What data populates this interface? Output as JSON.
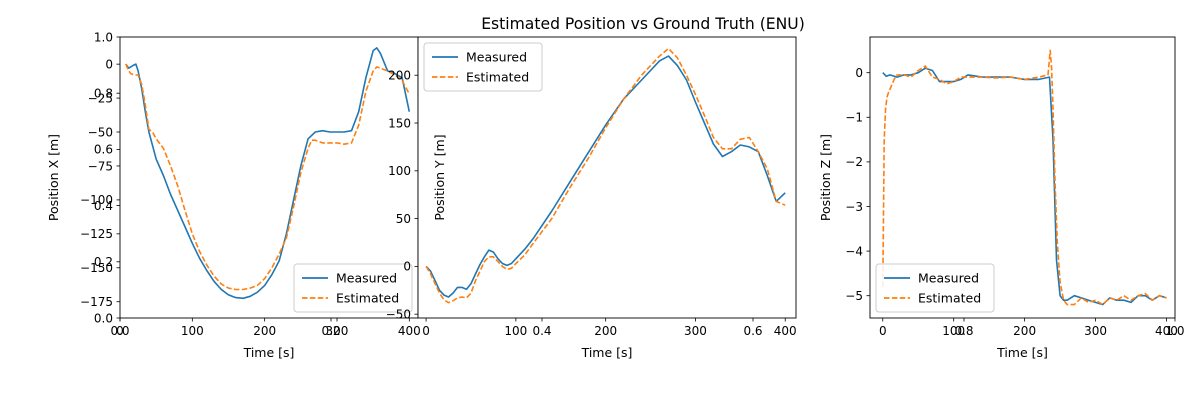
{
  "suptitle": "Estimated Position vs Ground Truth (ENU)",
  "colors": {
    "measured": "#1f77b4",
    "estimated": "#ff7f0e"
  },
  "bg_axis_ticks": [
    "0.0",
    "0.2",
    "0.4",
    "0.6",
    "0.8",
    "1.0"
  ],
  "chart_data": [
    {
      "type": "line",
      "xlabel": "Time [s]",
      "ylabel": "Position X [m]",
      "xlim": [
        0,
        412
      ],
      "ylim": [
        -187,
        20
      ],
      "xticks": [
        0,
        100,
        200,
        300,
        400
      ],
      "yticks": [
        0,
        -25,
        -50,
        -75,
        -100,
        -125,
        -150,
        -175
      ],
      "legend_loc": "lower right",
      "series": [
        {
          "name": "Measured",
          "style": "solid",
          "x": [
            8,
            12,
            18,
            22,
            25,
            30,
            35,
            40,
            50,
            60,
            70,
            80,
            90,
            100,
            110,
            120,
            130,
            140,
            150,
            160,
            170,
            180,
            190,
            200,
            210,
            220,
            230,
            240,
            250,
            260,
            270,
            280,
            290,
            300,
            310,
            320,
            330,
            340,
            350,
            355,
            360,
            370,
            380,
            390,
            400
          ],
          "y": [
            0,
            -3,
            -1,
            0,
            -5,
            -18,
            -35,
            -50,
            -70,
            -82,
            -96,
            -108,
            -120,
            -132,
            -143,
            -152,
            -160,
            -166,
            -170,
            -172,
            -172.5,
            -171,
            -168,
            -163,
            -155,
            -145,
            -125,
            -100,
            -75,
            -55,
            -50,
            -49,
            -50,
            -50,
            -50,
            -49,
            -35,
            -10,
            10,
            12,
            8,
            -5,
            -7,
            -10,
            -35
          ]
        },
        {
          "name": "Estimated",
          "style": "dashed",
          "x": [
            8,
            12,
            15,
            20,
            25,
            30,
            35,
            40,
            45,
            50,
            60,
            70,
            80,
            90,
            100,
            110,
            120,
            130,
            140,
            150,
            160,
            170,
            180,
            190,
            200,
            210,
            220,
            230,
            240,
            250,
            260,
            265,
            270,
            280,
            290,
            300,
            310,
            320,
            330,
            340,
            350,
            355,
            360,
            370,
            380,
            390,
            400
          ],
          "y": [
            0,
            -5,
            -7,
            -8,
            -8,
            -15,
            -30,
            -48,
            -50,
            -55,
            -62,
            -75,
            -90,
            -108,
            -125,
            -138,
            -148,
            -156,
            -162,
            -165,
            -166,
            -166,
            -165,
            -163,
            -158,
            -150,
            -140,
            -128,
            -105,
            -80,
            -62,
            -56,
            -56,
            -58,
            -58,
            -58,
            -59,
            -58,
            -45,
            -20,
            -5,
            -2,
            -3,
            -5,
            -8,
            -12,
            -22
          ]
        }
      ]
    },
    {
      "type": "line",
      "xlabel": "Time [s]",
      "ylabel": "Position Y [m]",
      "xlim": [
        -9,
        412
      ],
      "ylim": [
        -54,
        240
      ],
      "xticks": [
        0,
        100,
        200,
        300,
        400
      ],
      "yticks": [
        -50,
        0,
        50,
        100,
        150,
        200
      ],
      "legend_loc": "upper left",
      "series": [
        {
          "name": "Measured",
          "style": "solid",
          "x": [
            0,
            5,
            10,
            15,
            20,
            25,
            30,
            35,
            40,
            45,
            50,
            55,
            60,
            65,
            70,
            75,
            80,
            85,
            90,
            95,
            100,
            110,
            120,
            140,
            160,
            180,
            200,
            220,
            240,
            260,
            270,
            280,
            290,
            300,
            310,
            320,
            330,
            340,
            350,
            360,
            370,
            380,
            390,
            400
          ],
          "y": [
            0,
            -5,
            -15,
            -25,
            -30,
            -32,
            -28,
            -22,
            -22,
            -24,
            -18,
            -8,
            2,
            10,
            17,
            15,
            8,
            3,
            1,
            3,
            8,
            18,
            30,
            58,
            88,
            118,
            148,
            175,
            195,
            215,
            220,
            210,
            195,
            172,
            150,
            128,
            115,
            120,
            127,
            125,
            120,
            95,
            68,
            77
          ]
        },
        {
          "name": "Estimated",
          "style": "dashed",
          "x": [
            0,
            5,
            10,
            15,
            20,
            25,
            30,
            35,
            40,
            45,
            50,
            55,
            60,
            65,
            70,
            75,
            80,
            85,
            90,
            95,
            100,
            110,
            120,
            140,
            160,
            180,
            200,
            220,
            240,
            260,
            270,
            280,
            290,
            300,
            310,
            320,
            330,
            340,
            350,
            360,
            370,
            380,
            390,
            400
          ],
          "y": [
            0,
            -8,
            -18,
            -28,
            -35,
            -38,
            -36,
            -33,
            -32,
            -33,
            -28,
            -15,
            -5,
            5,
            10,
            10,
            5,
            0,
            -3,
            -2,
            3,
            12,
            25,
            50,
            82,
            112,
            145,
            175,
            200,
            220,
            228,
            218,
            200,
            180,
            158,
            135,
            123,
            123,
            133,
            135,
            120,
            102,
            68,
            64
          ]
        }
      ]
    },
    {
      "type": "line",
      "xlabel": "Time [s]",
      "ylabel": "Position Z [m]",
      "xlim": [
        -18,
        412
      ],
      "ylim": [
        -5.5,
        0.8
      ],
      "xticks": [
        0,
        100,
        200,
        300,
        400
      ],
      "yticks": [
        0,
        -1,
        -2,
        -3,
        -4,
        -5
      ],
      "legend_loc": "lower left",
      "series": [
        {
          "name": "Measured",
          "style": "solid",
          "x": [
            0,
            5,
            10,
            20,
            30,
            40,
            50,
            60,
            70,
            80,
            90,
            100,
            110,
            120,
            140,
            160,
            180,
            200,
            220,
            235,
            240,
            245,
            250,
            255,
            260,
            270,
            280,
            290,
            300,
            310,
            320,
            330,
            340,
            350,
            360,
            370,
            380,
            390,
            400
          ],
          "y": [
            0,
            -0.08,
            -0.05,
            -0.1,
            -0.05,
            -0.05,
            0,
            0.1,
            0.05,
            -0.2,
            -0.2,
            -0.2,
            -0.15,
            -0.05,
            -0.1,
            -0.1,
            -0.1,
            -0.15,
            -0.15,
            -0.1,
            -1.5,
            -4.2,
            -5.0,
            -5.1,
            -5.1,
            -5.0,
            -5.05,
            -5.1,
            -5.15,
            -5.2,
            -5.05,
            -5.1,
            -5.1,
            -5.15,
            -5.0,
            -5.0,
            -5.1,
            -5.0,
            -5.05
          ]
        },
        {
          "name": "Estimated",
          "style": "dashed",
          "x": [
            0,
            2,
            4,
            6,
            8,
            12,
            16,
            20,
            30,
            40,
            50,
            60,
            70,
            80,
            90,
            100,
            110,
            120,
            140,
            160,
            180,
            200,
            220,
            233,
            236,
            238,
            240,
            243,
            246,
            250,
            255,
            260,
            270,
            280,
            290,
            300,
            310,
            320,
            330,
            340,
            350,
            360,
            370,
            380,
            390,
            400
          ],
          "y": [
            -4.8,
            -1.5,
            -0.8,
            -0.55,
            -0.45,
            -0.3,
            -0.15,
            -0.05,
            -0.05,
            -0.1,
            0.05,
            0.15,
            -0.1,
            -0.15,
            -0.25,
            -0.2,
            -0.1,
            -0.1,
            -0.1,
            -0.12,
            -0.1,
            -0.15,
            -0.1,
            -0.05,
            0.5,
            0.1,
            -0.8,
            -2.5,
            -3.8,
            -4.7,
            -5.1,
            -5.2,
            -5.2,
            -5.05,
            -5.15,
            -5.1,
            -5.2,
            -5.05,
            -5.1,
            -5.0,
            -5.1,
            -5.0,
            -4.95,
            -5.1,
            -5.0,
            -5.05
          ]
        }
      ]
    }
  ]
}
